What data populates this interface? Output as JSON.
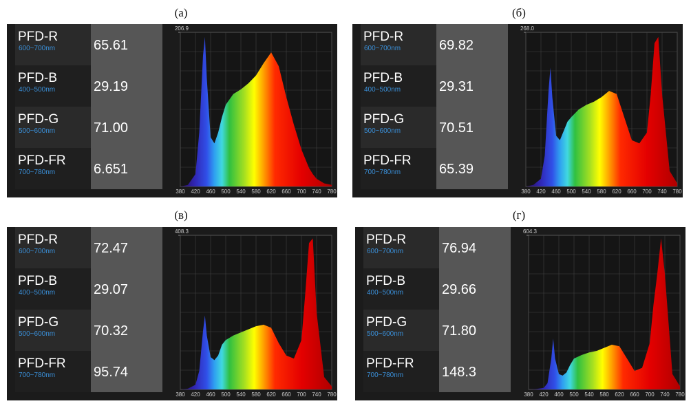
{
  "panels": [
    {
      "label": "(а)",
      "rows": [
        {
          "name": "PFD-R",
          "range": "600~700nm",
          "value": "65.61"
        },
        {
          "name": "PFD-B",
          "range": "400~500nm",
          "value": "29.19"
        },
        {
          "name": "PFD-G",
          "range": "500~600nm",
          "value": "71.00"
        },
        {
          "name": "PFD-FR",
          "range": "700~780nm",
          "value": "6.651"
        }
      ],
      "chart": {
        "type": "area",
        "xlim": [
          380,
          780
        ],
        "xticks": [
          380,
          420,
          460,
          500,
          540,
          580,
          620,
          660,
          700,
          740,
          780
        ],
        "ylim": [
          0,
          206.9
        ],
        "yticks": [
          206.9
        ],
        "x": [
          380,
          400,
          420,
          430,
          440,
          445,
          450,
          460,
          470,
          480,
          490,
          500,
          520,
          540,
          560,
          580,
          600,
          620,
          640,
          660,
          680,
          700,
          710,
          720,
          730,
          740,
          760,
          780
        ],
        "values": [
          0,
          2.1,
          16.6,
          72.4,
          175.9,
          200.7,
          144.8,
          66.2,
          57.9,
          72.4,
          93.1,
          109.7,
          124.1,
          130.3,
          138.6,
          149,
          165.5,
          180,
          161.4,
          120,
          82.8,
          49.7,
          37.2,
          24.8,
          16.6,
          10.3,
          4.1,
          2.1
        ]
      }
    },
    {
      "label": "(б)",
      "rows": [
        {
          "name": "PFD-R",
          "range": "600~700nm",
          "value": "69.82"
        },
        {
          "name": "PFD-B",
          "range": "400~500nm",
          "value": "29.31"
        },
        {
          "name": "PFD-G",
          "range": "500~600nm",
          "value": "70.51"
        },
        {
          "name": "PFD-FR",
          "range": "700~780nm",
          "value": "65.39"
        }
      ],
      "chart": {
        "type": "area",
        "xlim": [
          380,
          780
        ],
        "xticks": [
          380,
          420,
          460,
          500,
          540,
          580,
          620,
          660,
          700,
          740,
          780
        ],
        "ylim": [
          0,
          268.0
        ],
        "yticks": [
          {
            "value": 268.0,
            "label": "268.0"
          }
        ],
        "x": [
          380,
          400,
          420,
          430,
          440,
          445,
          450,
          460,
          470,
          480,
          490,
          500,
          520,
          540,
          560,
          580,
          600,
          620,
          640,
          660,
          680,
          700,
          710,
          720,
          730,
          740,
          760,
          780
        ],
        "values": [
          0,
          2.7,
          13.4,
          53.6,
          166.2,
          206.4,
          155.4,
          88.4,
          80.4,
          96.5,
          112.6,
          120.6,
          134,
          142,
          147.4,
          155.4,
          166.2,
          160.8,
          120.6,
          80.4,
          75,
          93.8,
          160.8,
          249.2,
          260,
          160.8,
          26.8,
          5.4
        ]
      }
    },
    {
      "label": "(в)",
      "rows": [
        {
          "name": "PFD-R",
          "range": "600~700nm",
          "value": "72.47"
        },
        {
          "name": "PFD-B",
          "range": "400~500nm",
          "value": "29.07"
        },
        {
          "name": "PFD-G",
          "range": "500~600nm",
          "value": "70.32"
        },
        {
          "name": "PFD-FR",
          "range": "700~780nm",
          "value": "95.74"
        }
      ],
      "chart": {
        "type": "area",
        "xlim": [
          380,
          780
        ],
        "xticks": [
          380,
          420,
          460,
          500,
          540,
          580,
          620,
          660,
          700,
          740,
          780
        ],
        "ylim": [
          0,
          408.3
        ],
        "yticks": [
          408.3
        ],
        "x": [
          380,
          400,
          420,
          430,
          440,
          445,
          450,
          460,
          470,
          480,
          490,
          500,
          520,
          540,
          560,
          580,
          600,
          620,
          640,
          660,
          680,
          700,
          710,
          720,
          730,
          740,
          760,
          780
        ],
        "values": [
          0,
          2,
          12.2,
          49,
          155.2,
          196,
          142.9,
          85.7,
          77.6,
          90,
          118.4,
          130.7,
          142.9,
          151.1,
          159.2,
          167.4,
          171.5,
          163.3,
          122.5,
          89.8,
          81.7,
          130.7,
          253.1,
          387.9,
          400.1,
          204.2,
          32.7,
          8.2
        ]
      }
    },
    {
      "label": "(г)",
      "rows": [
        {
          "name": "PFD-R",
          "range": "600~700nm",
          "value": "76.94"
        },
        {
          "name": "PFD-B",
          "range": "400~500nm",
          "value": "29.66"
        },
        {
          "name": "PFD-G",
          "range": "500~600nm",
          "value": "71.80"
        },
        {
          "name": "PFD-FR",
          "range": "700~780nm",
          "value": "148.3"
        }
      ],
      "chart": {
        "type": "area",
        "xlim": [
          380,
          780
        ],
        "xticks": [
          380,
          420,
          460,
          500,
          540,
          580,
          620,
          660,
          700,
          740,
          780
        ],
        "ylim": [
          0,
          604.3
        ],
        "yticks": [
          604.3
        ],
        "x": [
          380,
          400,
          420,
          430,
          440,
          445,
          450,
          460,
          470,
          480,
          490,
          500,
          520,
          540,
          560,
          580,
          600,
          620,
          640,
          660,
          680,
          700,
          710,
          720,
          730,
          740,
          760,
          780
        ],
        "values": [
          0,
          1.8,
          6,
          24.2,
          120.9,
          199.4,
          120.9,
          60.4,
          54.4,
          66.5,
          96.7,
          120.9,
          135,
          145,
          151.1,
          163.2,
          175.2,
          169.2,
          120.9,
          72.5,
          84.6,
          181.3,
          332.4,
          453.2,
          592.2,
          453.2,
          60.4,
          12.1
        ]
      }
    }
  ]
}
